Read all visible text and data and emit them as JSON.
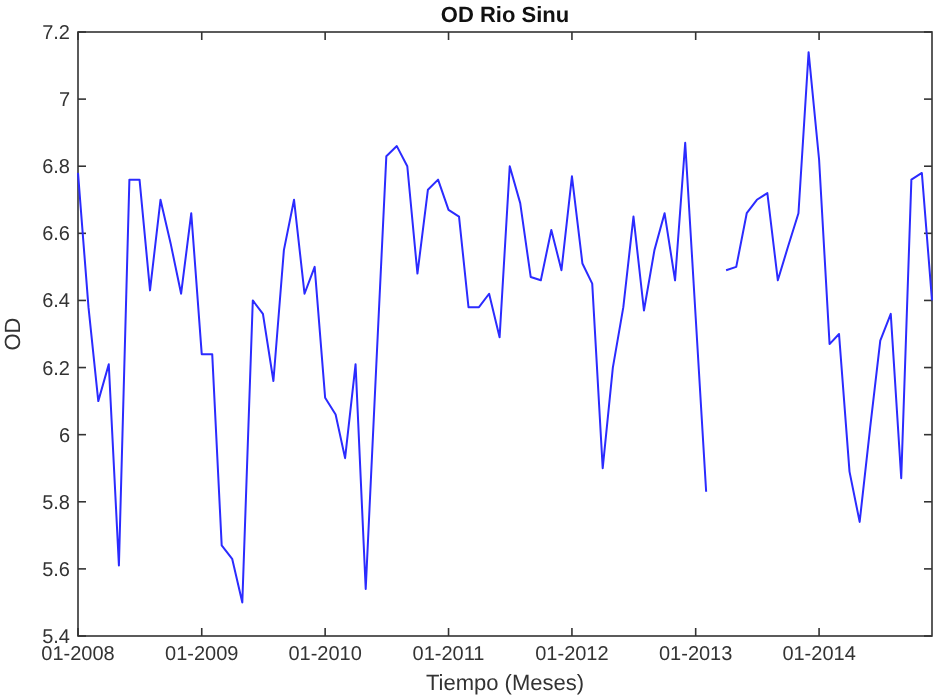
{
  "chart_data": {
    "type": "line",
    "title": "OD Rio Sinu",
    "xlabel": "Tiempo (Meses)",
    "ylabel": "OD",
    "x": [
      "2008-01",
      "2008-02",
      "2008-03",
      "2008-04",
      "2008-05",
      "2008-06",
      "2008-07",
      "2008-08",
      "2008-09",
      "2008-10",
      "2008-11",
      "2008-12",
      "2009-01",
      "2009-02",
      "2009-03",
      "2009-04",
      "2009-05",
      "2009-06",
      "2009-07",
      "2009-08",
      "2009-09",
      "2009-10",
      "2009-11",
      "2009-12",
      "2010-01",
      "2010-02",
      "2010-03",
      "2010-04",
      "2010-05",
      "2010-06",
      "2010-07",
      "2010-08",
      "2010-09",
      "2010-10",
      "2010-11",
      "2010-12",
      "2011-01",
      "2011-02",
      "2011-03",
      "2011-04",
      "2011-05",
      "2011-06",
      "2011-07",
      "2011-08",
      "2011-09",
      "2011-10",
      "2011-11",
      "2011-12",
      "2012-01",
      "2012-02",
      "2012-03",
      "2012-04",
      "2012-05",
      "2012-06",
      "2012-07",
      "2012-08",
      "2012-09",
      "2012-10",
      "2012-11",
      "2012-12",
      "2013-01",
      "2013-02",
      "2013-03",
      "2013-04",
      "2013-05",
      "2013-06",
      "2013-07",
      "2013-08",
      "2013-09",
      "2013-10",
      "2013-11",
      "2013-12",
      "2014-01",
      "2014-02",
      "2014-03",
      "2014-04",
      "2014-05",
      "2014-06",
      "2014-07",
      "2014-08",
      "2014-09",
      "2014-10",
      "2014-11",
      "2014-12"
    ],
    "series": [
      {
        "color": "#2b2bff",
        "values": [
          6.78,
          6.38,
          6.1,
          6.21,
          5.61,
          6.76,
          6.76,
          6.43,
          6.7,
          6.57,
          6.42,
          6.66,
          6.24,
          6.24,
          5.67,
          5.63,
          5.5,
          6.4,
          6.36,
          6.16,
          6.55,
          6.7,
          6.42,
          6.5,
          6.11,
          6.06,
          5.93,
          6.21,
          5.54,
          6.2,
          6.83,
          6.86,
          6.8,
          6.48,
          6.73,
          6.76,
          6.67,
          6.65,
          6.38,
          6.38,
          6.42,
          6.29,
          6.8,
          6.69,
          6.47,
          6.46,
          6.61,
          6.49,
          6.77,
          6.51,
          6.45,
          5.9,
          6.2,
          6.38,
          6.65,
          6.37,
          6.55,
          6.66,
          6.46,
          6.87,
          6.35,
          5.83,
          null,
          6.49,
          6.5,
          6.66,
          6.7,
          6.72,
          6.46,
          6.56,
          6.66,
          7.14,
          6.82,
          6.27,
          6.3,
          5.89,
          5.74,
          6.02,
          6.28,
          6.36,
          5.87,
          6.76,
          6.78,
          6.4
        ]
      }
    ],
    "xlim": [
      "2008-01",
      "2014-12"
    ],
    "xticks": [
      {
        "value": "2008-01",
        "label": "01-2008"
      },
      {
        "value": "2009-01",
        "label": "01-2009"
      },
      {
        "value": "2010-01",
        "label": "01-2010"
      },
      {
        "value": "2011-01",
        "label": "01-2011"
      },
      {
        "value": "2012-01",
        "label": "01-2012"
      },
      {
        "value": "2013-01",
        "label": "01-2013"
      },
      {
        "value": "2014-01",
        "label": "01-2014"
      }
    ],
    "ylim": [
      5.4,
      7.2
    ],
    "yticks": [
      5.4,
      5.6,
      5.8,
      6,
      6.2,
      6.4,
      6.6,
      6.8,
      7,
      7.2
    ],
    "grid": false,
    "marker": "none",
    "line_style": "solid"
  }
}
